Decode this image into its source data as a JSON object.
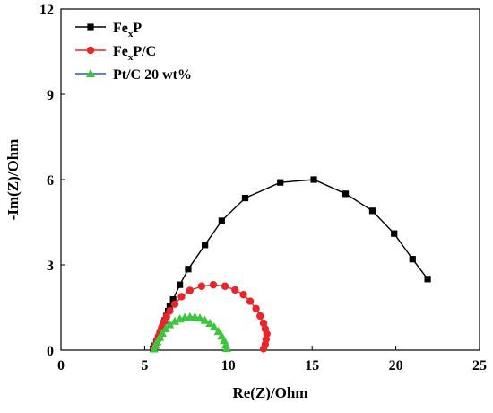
{
  "chart_data": {
    "type": "scatter",
    "xlabel": "Re(Z)/Ohm",
    "ylabel": "-Im(Z)/Ohm",
    "xlim": [
      0,
      25
    ],
    "ylim": [
      0,
      12
    ],
    "xticks": [
      0,
      5,
      10,
      15,
      20,
      25
    ],
    "yticks": [
      0,
      3,
      6,
      9,
      12
    ],
    "grid": false,
    "legend_position": "top-left",
    "series": [
      {
        "name": "FexP",
        "legend_main": "Fe",
        "legend_sub": "x",
        "legend_tail": "P",
        "color": "#000000",
        "marker": "square",
        "points": [
          [
            5.5,
            0.05
          ],
          [
            5.6,
            0.15
          ],
          [
            5.7,
            0.28
          ],
          [
            5.8,
            0.42
          ],
          [
            5.9,
            0.57
          ],
          [
            6.0,
            0.72
          ],
          [
            6.1,
            0.88
          ],
          [
            6.2,
            1.04
          ],
          [
            6.3,
            1.2
          ],
          [
            6.4,
            1.37
          ],
          [
            6.5,
            1.55
          ],
          [
            6.7,
            1.78
          ],
          [
            7.1,
            2.3
          ],
          [
            7.6,
            2.85
          ],
          [
            8.6,
            3.7
          ],
          [
            9.6,
            4.55
          ],
          [
            11.0,
            5.35
          ],
          [
            13.1,
            5.9
          ],
          [
            15.1,
            6.0
          ],
          [
            17.0,
            5.5
          ],
          [
            18.6,
            4.9
          ],
          [
            19.9,
            4.1
          ],
          [
            21.0,
            3.2
          ],
          [
            21.9,
            2.5
          ]
        ]
      },
      {
        "name": "FexP/C",
        "legend_main": "Fe",
        "legend_sub": "x",
        "legend_tail": "P/C",
        "color": "#e8262a",
        "marker": "circle",
        "points": [
          [
            5.55,
            0.05
          ],
          [
            5.65,
            0.2
          ],
          [
            5.75,
            0.36
          ],
          [
            5.85,
            0.52
          ],
          [
            5.95,
            0.68
          ],
          [
            6.05,
            0.84
          ],
          [
            6.15,
            1.0
          ],
          [
            6.3,
            1.18
          ],
          [
            6.5,
            1.38
          ],
          [
            6.8,
            1.62
          ],
          [
            7.2,
            1.88
          ],
          [
            7.7,
            2.1
          ],
          [
            8.4,
            2.25
          ],
          [
            9.1,
            2.3
          ],
          [
            9.8,
            2.25
          ],
          [
            10.4,
            2.12
          ],
          [
            10.9,
            1.95
          ],
          [
            11.3,
            1.72
          ],
          [
            11.65,
            1.46
          ],
          [
            11.9,
            1.2
          ],
          [
            12.1,
            0.95
          ],
          [
            12.2,
            0.75
          ],
          [
            12.3,
            0.57
          ],
          [
            12.25,
            0.38
          ],
          [
            12.2,
            0.2
          ],
          [
            12.1,
            0.05
          ]
        ]
      },
      {
        "name": "Pt/C 20 wt%",
        "legend_main": "Pt/C 20 wt%",
        "legend_sub": "",
        "legend_tail": "",
        "color": "#3cc63c",
        "line_color": "#1f5bd8",
        "marker": "triangle",
        "points": [
          [
            5.55,
            0.05
          ],
          [
            5.65,
            0.17
          ],
          [
            5.75,
            0.3
          ],
          [
            5.9,
            0.45
          ],
          [
            6.05,
            0.6
          ],
          [
            6.25,
            0.76
          ],
          [
            6.5,
            0.9
          ],
          [
            6.8,
            1.02
          ],
          [
            7.1,
            1.1
          ],
          [
            7.4,
            1.15
          ],
          [
            7.7,
            1.17
          ],
          [
            8.0,
            1.17
          ],
          [
            8.3,
            1.13
          ],
          [
            8.6,
            1.05
          ],
          [
            8.9,
            0.95
          ],
          [
            9.15,
            0.82
          ],
          [
            9.4,
            0.66
          ],
          [
            9.6,
            0.5
          ],
          [
            9.75,
            0.34
          ],
          [
            9.85,
            0.18
          ],
          [
            9.9,
            0.06
          ]
        ]
      }
    ]
  }
}
